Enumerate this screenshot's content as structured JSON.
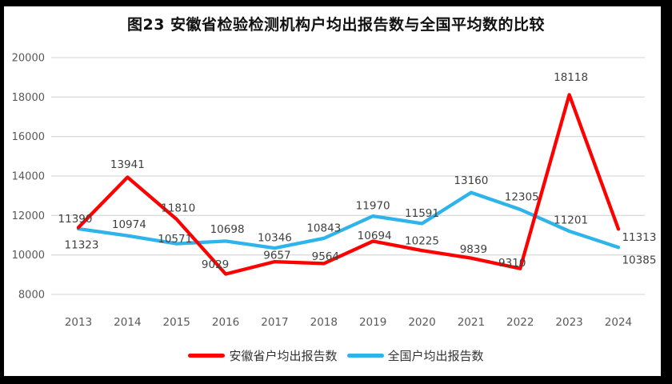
{
  "title": "图23 安徽省检验检测机构户均出报告数与全国平均数的比较",
  "legend": [
    {
      "label": "安徽省户均出报告数",
      "color": "#fe0000"
    },
    {
      "label": "全国户均出报告数",
      "color": "#2db4ea"
    }
  ],
  "axis": {
    "grid_color": "#dcdcdc",
    "tick_color": "#595959",
    "data_label_color": "#404040"
  },
  "chart_data": {
    "type": "line",
    "title": "图23 安徽省检验检测机构户均出报告数与全国平均数的比较",
    "xlabel": "",
    "ylabel": "",
    "categories": [
      "2013",
      "2014",
      "2015",
      "2016",
      "2017",
      "2018",
      "2019",
      "2020",
      "2021",
      "2022",
      "2023",
      "2024"
    ],
    "series": [
      {
        "name": "安徽省户均出报告数",
        "color": "#fe0000",
        "values": [
          11390,
          13941,
          11810,
          9029,
          9657,
          9564,
          10694,
          10225,
          9839,
          9310,
          18118,
          11313
        ],
        "label_offsets": [
          [
            -4,
            -11
          ],
          [
            0,
            -16
          ],
          [
            2,
            -14
          ],
          [
            -13,
            -12
          ],
          [
            3,
            -8
          ],
          [
            2,
            -9
          ],
          [
            2,
            -7
          ],
          [
            0,
            -12
          ],
          [
            3,
            -11
          ],
          [
            -10,
            -7
          ],
          [
            2,
            -22
          ],
          [
            26,
            10
          ]
        ]
      },
      {
        "name": "全国户均出报告数",
        "color": "#2db4ea",
        "values": [
          11323,
          10974,
          10571,
          10698,
          10346,
          10843,
          11970,
          11591,
          13160,
          12305,
          11201,
          10385
        ],
        "label_offsets": [
          [
            4,
            20
          ],
          [
            2,
            -14
          ],
          [
            -2,
            -6
          ],
          [
            2,
            -15
          ],
          [
            0,
            -13
          ],
          [
            0,
            -13
          ],
          [
            0,
            -13
          ],
          [
            0,
            -13
          ],
          [
            0,
            -15
          ],
          [
            2,
            -16
          ],
          [
            2,
            -14
          ],
          [
            26,
            16
          ]
        ]
      }
    ],
    "ylim": [
      8000,
      20000
    ],
    "yticks": [
      8000,
      10000,
      12000,
      14000,
      16000,
      18000,
      20000
    ],
    "grid": true,
    "legend_position": "bottom",
    "data_labels": true
  }
}
